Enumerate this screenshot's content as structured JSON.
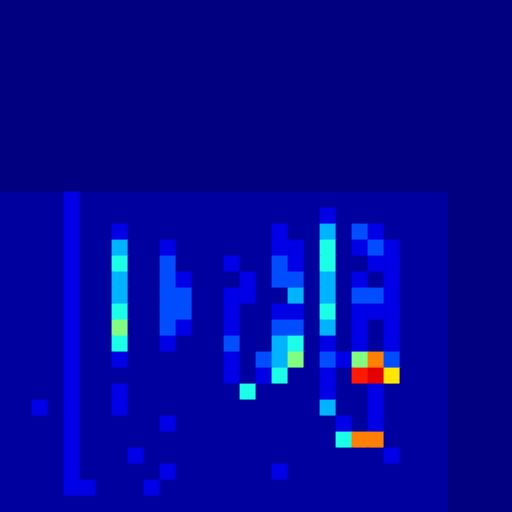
{
  "chart_data": {
    "type": "heatmap",
    "xlim": [
      0,
      32
    ],
    "ylim": [
      0,
      32
    ],
    "crange": [
      0,
      10
    ],
    "tick_labels": false,
    "grid": false,
    "cells": [
      [
        0,
        0,
        0,
        0,
        0,
        0,
        0,
        0,
        0,
        0,
        0,
        0,
        0,
        0,
        0,
        0,
        0,
        0,
        0,
        0,
        0,
        0,
        0,
        0,
        0,
        0,
        0,
        0,
        0,
        0,
        0,
        0
      ],
      [
        0,
        0,
        0,
        0,
        0,
        0,
        0,
        0,
        0,
        0,
        0,
        0,
        0,
        0,
        0,
        0,
        0,
        0,
        0,
        0,
        0,
        0,
        0,
        0,
        0,
        0,
        0,
        0,
        0,
        0,
        0,
        0
      ],
      [
        0,
        0,
        0,
        0,
        0,
        0,
        0,
        0,
        0,
        0,
        0,
        0,
        0,
        0,
        0,
        0,
        0,
        0,
        0,
        0,
        0,
        0,
        0,
        0,
        0,
        0,
        0,
        0,
        0,
        0,
        0,
        0
      ],
      [
        0,
        0,
        0,
        0,
        0,
        0,
        0,
        0,
        0,
        0,
        0,
        0,
        0,
        0,
        0,
        0,
        0,
        0,
        0,
        0,
        0,
        0,
        0,
        0,
        0,
        0,
        0,
        0,
        0,
        0,
        0,
        0
      ],
      [
        0,
        0,
        0,
        0,
        0,
        0,
        0,
        0,
        0,
        0,
        0,
        0,
        0,
        0,
        0,
        0,
        0,
        0,
        0,
        0,
        0,
        0,
        0,
        0,
        0,
        0,
        0,
        0,
        0,
        0,
        0,
        0
      ],
      [
        0,
        0,
        0,
        0,
        0,
        0,
        0,
        0,
        0,
        0,
        0,
        0,
        0,
        0,
        0,
        0,
        0,
        0,
        0,
        0,
        0,
        0,
        0,
        0,
        0,
        0,
        0,
        0,
        0,
        0,
        0,
        0
      ],
      [
        0,
        0,
        0,
        0,
        0,
        0,
        0,
        0,
        0,
        0,
        0,
        0,
        0,
        0,
        0,
        0,
        0,
        0,
        0,
        0,
        0,
        0,
        0,
        0,
        0,
        0,
        0,
        0,
        0,
        0,
        0,
        0
      ],
      [
        0,
        0,
        0,
        0,
        0,
        0,
        0,
        0,
        0,
        0,
        0,
        0,
        0,
        0,
        0,
        0,
        0,
        0,
        0,
        0,
        0,
        0,
        0,
        0,
        0,
        0,
        0,
        0,
        0,
        0,
        0,
        0
      ],
      [
        0,
        0,
        0,
        0,
        0,
        0,
        0,
        0,
        0,
        0,
        0,
        0,
        0,
        0,
        0,
        0,
        0,
        0,
        0,
        0,
        0,
        0,
        0,
        0,
        0,
        0,
        0,
        0,
        0,
        0,
        0,
        0
      ],
      [
        0,
        0,
        0,
        0,
        0,
        0,
        0,
        0,
        0,
        0,
        0,
        0,
        0,
        0,
        0,
        0,
        0,
        0,
        0,
        0,
        0,
        0,
        0,
        0,
        0,
        0,
        0,
        0,
        0,
        0,
        0,
        0
      ],
      [
        0,
        0,
        0,
        0,
        0,
        0,
        0,
        0,
        0,
        0,
        0,
        0,
        0,
        0,
        0,
        0,
        0,
        0,
        0,
        0,
        0,
        0,
        0,
        0,
        0,
        0,
        0,
        0,
        0,
        0,
        0,
        0
      ],
      [
        0,
        0,
        0,
        0,
        0,
        0,
        0,
        0,
        0,
        0,
        0,
        0,
        0,
        0,
        0,
        0,
        0,
        0,
        0,
        0,
        0,
        0,
        0,
        0,
        0,
        0,
        0,
        0,
        0,
        0,
        0,
        0
      ],
      [
        0.3,
        0.3,
        0.3,
        0.3,
        1,
        0.3,
        0.3,
        0.3,
        0.3,
        0.3,
        0.3,
        0.3,
        0.3,
        0.3,
        0.3,
        0.3,
        0.3,
        0.3,
        0.3,
        0.3,
        0.3,
        0.3,
        0.3,
        0.3,
        0.3,
        0.3,
        0.3,
        0.3,
        0,
        0,
        0,
        0
      ],
      [
        0.3,
        0.3,
        0.3,
        0.3,
        1,
        0.3,
        0.3,
        0.3,
        0.3,
        0.3,
        0.3,
        0.3,
        0.3,
        0.3,
        0.3,
        0.3,
        0.3,
        0.3,
        0.3,
        0.3,
        1,
        0.3,
        0.3,
        0.3,
        0.3,
        0.3,
        0.3,
        0.3,
        0,
        0,
        0,
        0
      ],
      [
        0.3,
        0.3,
        0.3,
        0.3,
        1,
        0.3,
        0.3,
        1,
        0.3,
        0.3,
        0.3,
        0.3,
        0.3,
        0.3,
        0.3,
        0.3,
        0.3,
        1,
        0.3,
        0.3,
        3,
        0.3,
        2,
        1,
        0.3,
        0.3,
        0.3,
        0.3,
        0,
        0,
        0,
        0
      ],
      [
        0.3,
        0.3,
        0.3,
        0.3,
        1,
        0.3,
        0.3,
        3,
        0.3,
        0.3,
        1,
        0.3,
        0.3,
        0.3,
        0.3,
        0.3,
        0.3,
        1,
        1,
        0.3,
        4,
        0.3,
        1,
        2,
        1,
        0.3,
        0.3,
        0.3,
        0,
        0,
        0,
        0
      ],
      [
        0.3,
        0.3,
        0.3,
        0.3,
        1,
        0.3,
        0.3,
        4,
        0.3,
        0.3,
        2,
        0.3,
        0.3,
        0.3,
        1,
        0.3,
        0.3,
        2,
        1,
        0.3,
        4,
        0.3,
        0.3,
        1,
        1,
        0.3,
        0.3,
        0.3,
        0,
        0,
        0,
        0
      ],
      [
        0.3,
        0.3,
        0.3,
        0.3,
        1,
        0.3,
        0.3,
        3,
        0.3,
        0.3,
        2,
        1,
        0.3,
        0.3,
        0.3,
        1,
        0.3,
        2,
        2,
        0.3,
        3,
        0.3,
        1,
        0.3,
        1,
        0.3,
        0.3,
        0.3,
        0,
        0,
        0,
        0
      ],
      [
        0.3,
        0.3,
        0.3,
        0.3,
        1,
        0.3,
        0.3,
        3,
        0.3,
        0.3,
        2,
        2,
        0.3,
        0.3,
        1,
        1,
        0.3,
        0.3,
        3,
        0.3,
        3,
        0.3,
        2,
        2,
        1,
        0.3,
        0.3,
        0.3,
        0,
        0,
        0,
        0
      ],
      [
        0.3,
        0.3,
        0.3,
        0.3,
        1,
        0.3,
        0.3,
        4,
        0.3,
        0.3,
        2,
        2,
        0.3,
        0.3,
        1,
        0.3,
        0.3,
        1,
        1,
        0.3,
        4,
        0.3,
        1,
        1,
        1,
        0.3,
        0.3,
        0.3,
        0,
        0,
        0,
        0
      ],
      [
        0.3,
        0.3,
        0.3,
        0.3,
        1,
        0.3,
        0.3,
        5,
        0.3,
        0.3,
        2,
        1,
        0.3,
        0.3,
        1,
        0.3,
        0.3,
        2,
        2,
        0.3,
        3,
        0.3,
        1,
        0.3,
        1,
        0.3,
        0.3,
        0.3,
        0,
        0,
        0,
        0
      ],
      [
        0.3,
        0.3,
        0.3,
        0.3,
        1,
        0.3,
        0.3,
        4,
        0.3,
        0.3,
        1,
        0.3,
        0.3,
        0.3,
        2,
        0.3,
        0.3,
        3,
        4,
        0.3,
        1,
        0.3,
        1,
        0.3,
        1,
        0.3,
        0.3,
        0.3,
        0,
        0,
        0,
        0
      ],
      [
        0.3,
        0.3,
        0.3,
        0.3,
        1,
        0.3,
        0.3,
        1,
        0.3,
        0.3,
        0.3,
        0.3,
        0.3,
        0.3,
        1,
        0.3,
        2,
        3,
        5,
        0.3,
        2,
        1,
        5,
        7.5,
        2,
        0.3,
        0.3,
        0.3,
        0,
        0,
        0,
        0
      ],
      [
        0.3,
        0.3,
        0.3,
        0.3,
        1,
        0.3,
        0.3,
        0.3,
        0.3,
        0.3,
        0.3,
        0.3,
        0.3,
        0.3,
        1,
        0.3,
        1,
        4,
        0.3,
        0.3,
        1,
        0.3,
        8.5,
        9,
        6.5,
        0.3,
        0.3,
        0.3,
        0,
        0,
        0,
        0
      ],
      [
        0.3,
        0.3,
        0.3,
        0.3,
        1,
        0.3,
        0.3,
        1,
        0.3,
        0.3,
        0.3,
        0.3,
        0.3,
        0.3,
        0.3,
        4,
        0.3,
        0.3,
        0.3,
        0.3,
        1,
        0.3,
        0.3,
        1,
        0.3,
        0.3,
        0.3,
        0.3,
        0,
        0,
        0,
        0
      ],
      [
        0.3,
        0.3,
        1,
        0.3,
        1,
        0.3,
        0.3,
        1,
        0.3,
        0.3,
        0.3,
        0.3,
        0.3,
        0.3,
        0.3,
        0.3,
        0.3,
        0.3,
        0.3,
        0.3,
        3,
        0.3,
        0.3,
        1,
        0.3,
        0.3,
        0.3,
        0.3,
        0,
        0,
        0,
        0
      ],
      [
        0.3,
        0.3,
        0.3,
        0.3,
        1,
        0.3,
        0.3,
        0.3,
        0.3,
        0.3,
        1,
        0.3,
        0.3,
        0.3,
        0.3,
        0.3,
        0.3,
        0.3,
        0.3,
        0.3,
        0.3,
        1,
        0.3,
        1,
        0.3,
        0.3,
        0.3,
        0.3,
        0,
        0,
        0,
        0
      ],
      [
        0.3,
        0.3,
        0.3,
        0.3,
        1,
        0.3,
        0.3,
        0.3,
        0.3,
        0.3,
        0.3,
        0.3,
        0.3,
        0.3,
        0.3,
        0.3,
        0.3,
        0.3,
        0.3,
        0.3,
        0.3,
        4,
        7.5,
        7.5,
        0.3,
        0.3,
        0.3,
        0.3,
        0,
        0,
        0,
        0
      ],
      [
        0.3,
        0.3,
        0.3,
        0.3,
        1,
        0.3,
        0.3,
        0.3,
        1,
        0.3,
        0.3,
        0.3,
        0.3,
        0.3,
        0.3,
        0.3,
        0.3,
        0.3,
        0.3,
        0.3,
        0.3,
        0.3,
        0.3,
        0.3,
        1,
        0.3,
        0.3,
        0.3,
        0,
        0,
        0,
        0
      ],
      [
        0.3,
        0.3,
        0.3,
        0.3,
        1,
        0.3,
        0.3,
        0.3,
        0.3,
        0.3,
        1,
        0.3,
        0.3,
        0.3,
        0.3,
        0.3,
        0.3,
        1,
        0.3,
        0.3,
        0.3,
        0.3,
        0.3,
        0.3,
        0.3,
        0.3,
        0.3,
        0.3,
        0,
        0,
        0,
        0
      ],
      [
        0.3,
        0.3,
        0.3,
        0.3,
        1,
        1,
        0.3,
        0.3,
        0.3,
        1,
        0.3,
        0.3,
        0.3,
        0.3,
        0.3,
        0.3,
        0.3,
        0.3,
        0.3,
        0.3,
        0.3,
        0.3,
        0.3,
        0.3,
        0.3,
        0.3,
        0.3,
        0.3,
        0,
        0,
        0,
        0
      ],
      [
        0.3,
        0.3,
        0.3,
        0.3,
        0.3,
        0.3,
        0.3,
        0.3,
        0.3,
        0.3,
        0.3,
        0.3,
        0.3,
        0.3,
        0.3,
        0.3,
        0.3,
        0.3,
        0.3,
        0.3,
        0.3,
        0.3,
        0.3,
        0.3,
        0.3,
        0.3,
        0.3,
        0.3,
        0,
        0,
        0,
        0
      ]
    ]
  }
}
